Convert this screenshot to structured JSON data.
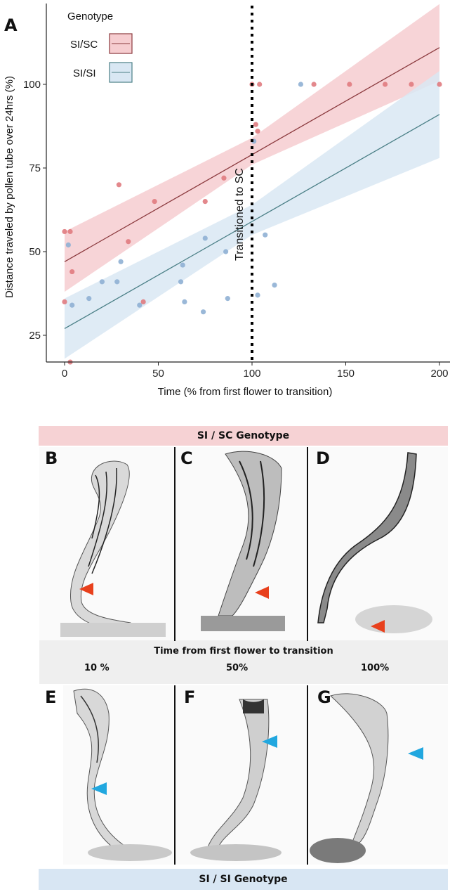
{
  "panel_a_label": "A",
  "chart_data": {
    "type": "scatter",
    "title": "",
    "xlabel": "Time (% from first flower to transition)",
    "ylabel": "Distance traveled by pollen tube over 24hrs (%)",
    "xlim": [
      -5,
      202
    ],
    "ylim": [
      14,
      124
    ],
    "x_ticks": [
      0,
      50,
      100,
      150,
      200
    ],
    "y_ticks": [
      25,
      50,
      75,
      100
    ],
    "legend_title": "Genotype",
    "legend_position": "top-left",
    "annotation": "Transitioned to SC",
    "annotation_x": 100,
    "series": [
      {
        "name": "SI/SC",
        "color": "#e07b80",
        "line_color": "#8b3a3e",
        "fill": "#f6cdd0",
        "fit": {
          "x": [
            0,
            200
          ],
          "y": [
            47,
            111
          ]
        },
        "band_lower": [
          {
            "x": 0,
            "y": 38
          },
          {
            "x": 100,
            "y": 76
          },
          {
            "x": 200,
            "y": 101
          }
        ],
        "band_upper": [
          {
            "x": 0,
            "y": 56
          },
          {
            "x": 100,
            "y": 84
          },
          {
            "x": 200,
            "y": 124
          }
        ],
        "points": [
          {
            "x": 0,
            "y": 56
          },
          {
            "x": 3,
            "y": 56
          },
          {
            "x": 4,
            "y": 44
          },
          {
            "x": 0,
            "y": 35
          },
          {
            "x": 29,
            "y": 70
          },
          {
            "x": 34,
            "y": 53
          },
          {
            "x": 42,
            "y": 35
          },
          {
            "x": 48,
            "y": 65
          },
          {
            "x": 75,
            "y": 65
          },
          {
            "x": 85,
            "y": 72
          },
          {
            "x": 100,
            "y": 100
          },
          {
            "x": 104,
            "y": 100
          },
          {
            "x": 102,
            "y": 88
          },
          {
            "x": 103,
            "y": 86
          },
          {
            "x": 133,
            "y": 100
          },
          {
            "x": 152,
            "y": 100
          },
          {
            "x": 171,
            "y": 100
          },
          {
            "x": 185,
            "y": 100
          },
          {
            "x": 200,
            "y": 100
          },
          {
            "x": 3,
            "y": 17
          }
        ]
      },
      {
        "name": "SI/SI",
        "color": "#8fb0d4",
        "line_color": "#4a7f86",
        "fill": "#d9e7f3",
        "fit": {
          "x": [
            0,
            200
          ],
          "y": [
            27,
            91
          ]
        },
        "band_lower": [
          {
            "x": 0,
            "y": 18
          },
          {
            "x": 100,
            "y": 55
          },
          {
            "x": 200,
            "y": 78
          }
        ],
        "band_upper": [
          {
            "x": 0,
            "y": 36
          },
          {
            "x": 100,
            "y": 64
          },
          {
            "x": 200,
            "y": 104
          }
        ],
        "points": [
          {
            "x": 2,
            "y": 52
          },
          {
            "x": 4,
            "y": 34
          },
          {
            "x": 13,
            "y": 36
          },
          {
            "x": 20,
            "y": 41
          },
          {
            "x": 28,
            "y": 41
          },
          {
            "x": 30,
            "y": 47
          },
          {
            "x": 40,
            "y": 34
          },
          {
            "x": 62,
            "y": 41
          },
          {
            "x": 63,
            "y": 46
          },
          {
            "x": 64,
            "y": 35
          },
          {
            "x": 74,
            "y": 32
          },
          {
            "x": 75,
            "y": 54
          },
          {
            "x": 86,
            "y": 50
          },
          {
            "x": 87,
            "y": 36
          },
          {
            "x": 101,
            "y": 83
          },
          {
            "x": 103,
            "y": 37
          },
          {
            "x": 107,
            "y": 55
          },
          {
            "x": 112,
            "y": 40
          },
          {
            "x": 126,
            "y": 100
          }
        ]
      }
    ]
  },
  "banner_top": "SI / SC Genotype",
  "banner_bottom": "SI / SI Genotype",
  "time_title": "Time from first flower to transition",
  "time_values": [
    "10 %",
    "50%",
    "100%"
  ],
  "panels": {
    "b": "B",
    "c": "C",
    "d": "D",
    "e": "E",
    "f": "F",
    "g": "G"
  },
  "arrow_colors": {
    "sc": "#e8401c",
    "si": "#21a7df"
  }
}
